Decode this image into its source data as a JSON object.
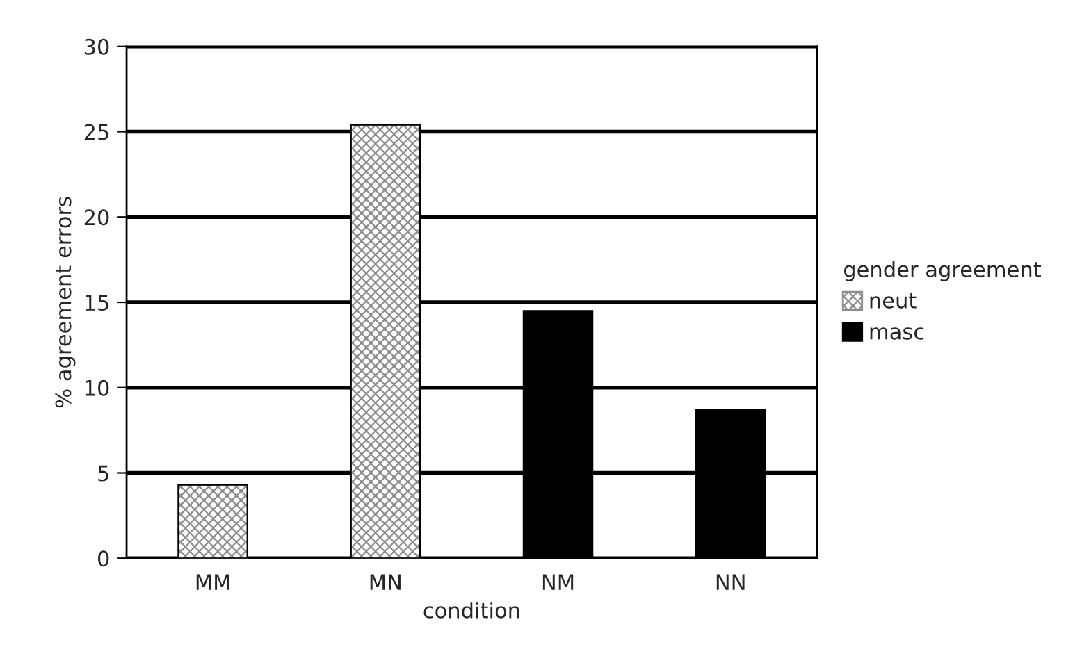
{
  "chart_data": {
    "type": "bar",
    "xlabel": "condition",
    "ylabel": "% agreement errors",
    "legend_title": "gender agreement",
    "categories": [
      "MM",
      "MN",
      "NM",
      "NN"
    ],
    "series": [
      {
        "name": "neut",
        "color": "#8c8c8c",
        "values": [
          4.3,
          25.4,
          null,
          null
        ]
      },
      {
        "name": "masc",
        "color": "#000000",
        "values": [
          null,
          null,
          14.5,
          8.7
        ]
      }
    ],
    "ylim": [
      0,
      30
    ],
    "yticks": [
      0,
      5,
      10,
      15,
      20,
      25,
      30
    ],
    "grid": "y",
    "legend": "right"
  }
}
